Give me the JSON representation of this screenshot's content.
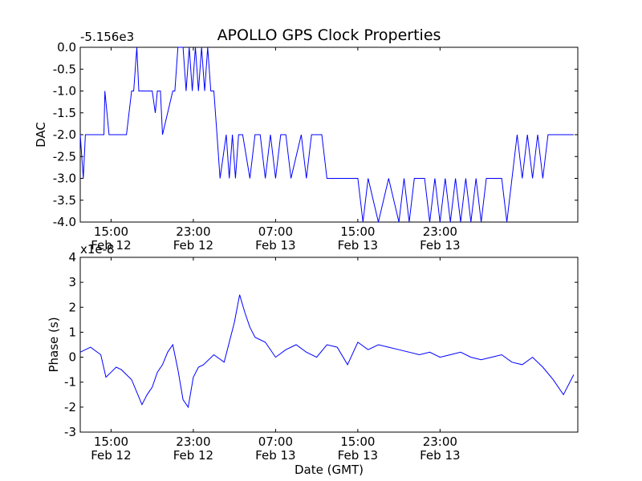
{
  "chart_data": {
    "title": "APOLLO GPS Clock Properties",
    "x_ticks": [
      {
        "label": "15:00",
        "date": "Feb 12",
        "t": "2012-02-12T15:00"
      },
      {
        "label": "23:00",
        "date": "Feb 12",
        "t": "2012-02-12T23:00"
      },
      {
        "label": "07:00",
        "date": "Feb 13",
        "t": "2012-02-13T07:00"
      },
      {
        "label": "15:00",
        "date": "Feb 13",
        "t": "2012-02-13T15:00"
      },
      {
        "label": "23:00",
        "date": "Feb 13",
        "t": "2012-02-13T23:00"
      }
    ],
    "xlabel": "Date (GMT)",
    "charts": [
      {
        "type": "line",
        "ylabel": "DAC",
        "offset_label": "-5.156e3",
        "ylim": [
          -4.0,
          0.0
        ],
        "yticks": [
          "0.0",
          "-0.5",
          "-1.0",
          "-1.5",
          "-2.0",
          "-2.5",
          "-3.0",
          "-3.5",
          "-4.0"
        ],
        "color": "#0000ff",
        "series": [
          {
            "x_hours": [
              0,
              0.3,
              0.5,
              1,
              2.3,
              2.4,
              2.8,
              4.5,
              5,
              5.2,
              5.5,
              5.7,
              6,
              7,
              7.3,
              7.5,
              7.8,
              8,
              9,
              9.2,
              9.5,
              10,
              10.3,
              10.6,
              10.9,
              11.2,
              11.5,
              11.8,
              12.1,
              12.4,
              12.7,
              13,
              13.3,
              13.6,
              14.2,
              14.5,
              14.8,
              15.1,
              15.4,
              15.8,
              16.5,
              17,
              17.5,
              18,
              18.5,
              19,
              19.5,
              20,
              20.5,
              21.5,
              22,
              22.5,
              23,
              23.5,
              24,
              24.5,
              25,
              25.5,
              26,
              27,
              27.5,
              28,
              29,
              30,
              31,
              31.5,
              32,
              32.5,
              33,
              33.5,
              34,
              34.5,
              35,
              35.5,
              36,
              36.5,
              37,
              37.5,
              38,
              38.5,
              39,
              39.5,
              40,
              41,
              41.5,
              42,
              42.5,
              43,
              43.5,
              44,
              44.5,
              45,
              45.5,
              46,
              46.5,
              47,
              47.5,
              48
            ],
            "y": [
              -2,
              -3,
              -2,
              -2,
              -2,
              -1,
              -2,
              -2,
              -1,
              -1,
              0,
              -1,
              -1,
              -1,
              -1.5,
              -1,
              -1,
              -2,
              -1,
              -1,
              0,
              0,
              -1,
              0,
              -1,
              0,
              -1,
              0,
              -1,
              0,
              -1,
              -1,
              -2,
              -3,
              -2,
              -3,
              -2,
              -3,
              -2,
              -2,
              -3,
              -2,
              -2,
              -3,
              -2,
              -3,
              -2,
              -2,
              -3,
              -2,
              -3,
              -2,
              -2,
              -2,
              -3,
              -3,
              -3,
              -3,
              -3,
              -3,
              -4,
              -3,
              -4,
              -3,
              -4,
              -3,
              -4,
              -3,
              -3,
              -3,
              -4,
              -3,
              -4,
              -3,
              -4,
              -3,
              -4,
              -3,
              -4,
              -3,
              -4,
              -3,
              -3,
              -3,
              -4,
              -3,
              -2,
              -3,
              -2,
              -3,
              -2,
              -3,
              -2,
              -2,
              -2,
              -2,
              -2,
              -2
            ]
          }
        ]
      },
      {
        "type": "line",
        "ylabel": "Phase (s)",
        "offset_label": "x1e-8",
        "ylim": [
          -3,
          4
        ],
        "yticks": [
          "4",
          "3",
          "2",
          "1",
          "0",
          "-1",
          "-2",
          "-3"
        ],
        "color": "#0000ff",
        "series": [
          {
            "x_hours": [
              0,
              1,
              2,
              2.5,
              3,
              3.5,
              4,
              5,
              6,
              6.5,
              7,
              7.5,
              8,
              8.5,
              9,
              9.5,
              10,
              10.5,
              11,
              11.5,
              12,
              13,
              14,
              15,
              15.5,
              16,
              16.5,
              17,
              18,
              19,
              20,
              21,
              22,
              23,
              24,
              25,
              26,
              27,
              28,
              29,
              30,
              31,
              32,
              33,
              34,
              35,
              36,
              37,
              38,
              39,
              40,
              41,
              42,
              43,
              44,
              45,
              46,
              47,
              48
            ],
            "y": [
              0.2,
              0.4,
              0.1,
              -0.8,
              -0.6,
              -0.4,
              -0.5,
              -0.9,
              -1.9,
              -1.5,
              -1.2,
              -0.6,
              -0.3,
              0.2,
              0.5,
              -0.5,
              -1.7,
              -2.0,
              -0.8,
              -0.4,
              -0.3,
              0.1,
              -0.2,
              1.4,
              2.5,
              1.8,
              1.2,
              0.8,
              0.6,
              0.0,
              0.3,
              0.5,
              0.2,
              0.0,
              0.5,
              0.4,
              -0.3,
              0.6,
              0.3,
              0.5,
              0.4,
              0.3,
              0.2,
              0.1,
              0.2,
              0.0,
              0.1,
              0.2,
              0.0,
              -0.1,
              0.0,
              0.1,
              -0.2,
              -0.3,
              0.0,
              -0.4,
              -0.9,
              -1.5,
              -0.7
            ]
          }
        ]
      }
    ]
  }
}
